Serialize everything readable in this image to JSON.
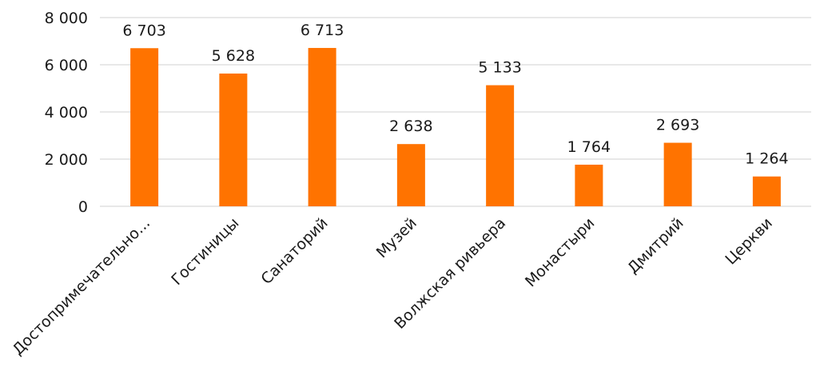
{
  "chart_data": {
    "type": "bar",
    "title": "",
    "xlabel": "",
    "ylabel": "",
    "categories": [
      "Достопримечательно...",
      "Гостиницы",
      "Санаторий",
      "Музей",
      "Волжская ривьера",
      "Монастыри",
      "Дмитрий",
      "Церкви"
    ],
    "values": [
      6703,
      5628,
      6713,
      2638,
      5133,
      1764,
      2693,
      1264
    ],
    "value_labels": [
      "6 703",
      "5 628",
      "6 713",
      "2 638",
      "5 133",
      "1 764",
      "2 693",
      "1 264"
    ],
    "ylim": [
      0,
      8000
    ],
    "yticks": [
      0,
      2000,
      4000,
      6000,
      8000
    ],
    "ytick_labels": [
      "0",
      "2 000",
      "4 000",
      "6 000",
      "8 000"
    ],
    "grid": true,
    "legend": "none",
    "colors": {
      "bar": "#FF7300",
      "grid": "#D9D9D9",
      "text": "#1A1A1A"
    }
  }
}
